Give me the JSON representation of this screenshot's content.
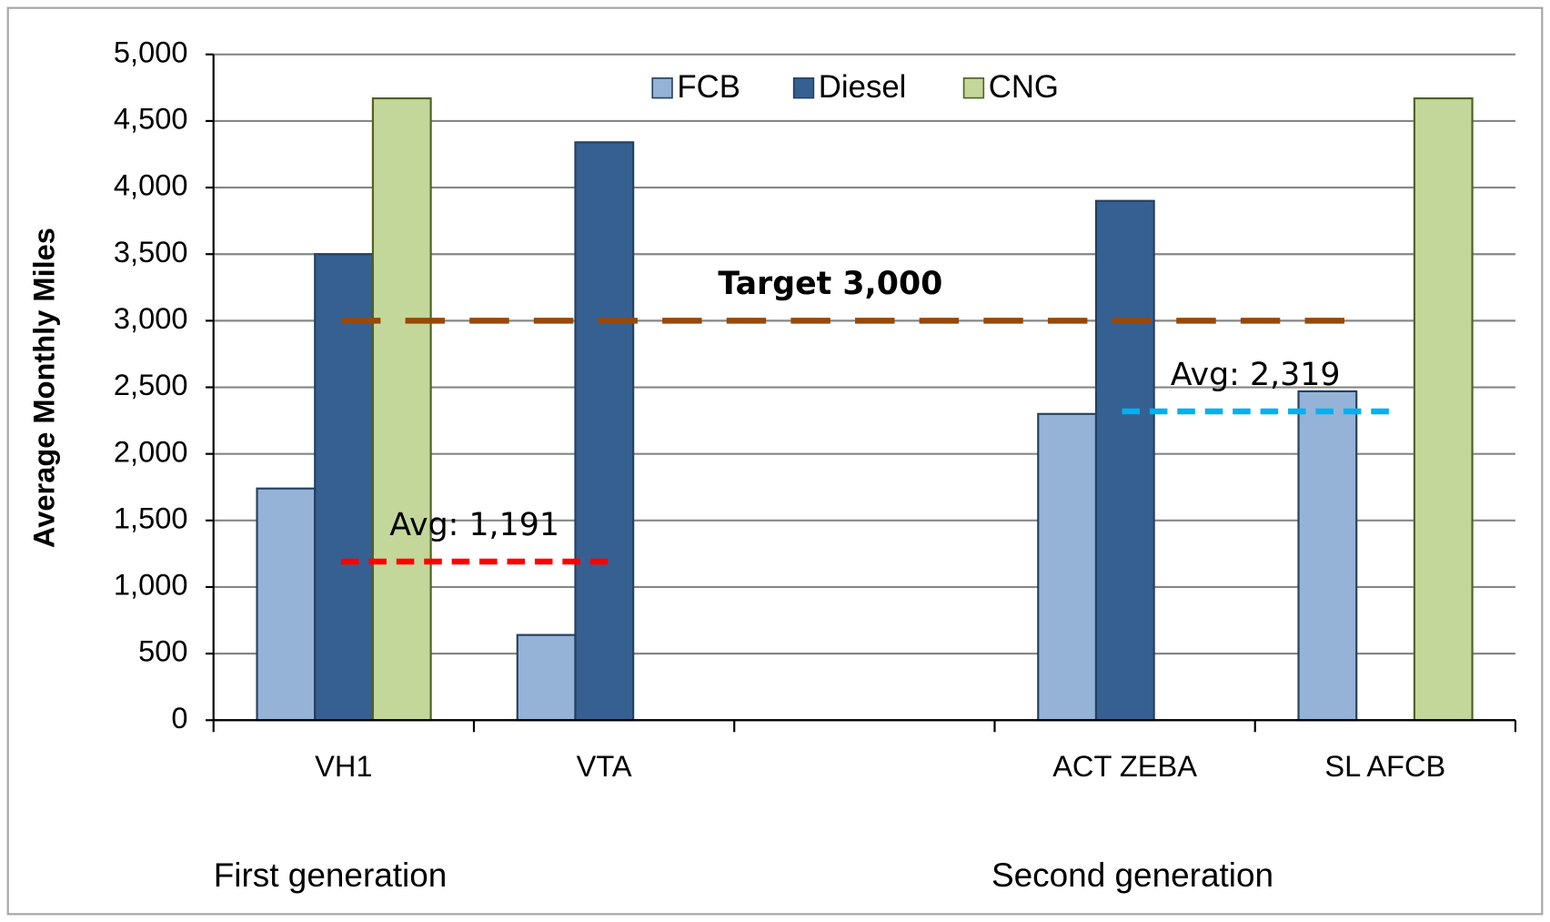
{
  "chart_data": {
    "type": "bar",
    "y_label": "Average Monthly Miles",
    "categories": [
      "VH1",
      "VTA",
      null,
      "ACT ZEBA",
      "SL AFCB"
    ],
    "series": [
      {
        "name": "FCB",
        "color": "#95b3d7",
        "values": [
          1740,
          640,
          null,
          2300,
          2470
        ]
      },
      {
        "name": "Diesel",
        "color": "#366092",
        "values": [
          3500,
          4340,
          null,
          3900,
          null
        ]
      },
      {
        "name": "CNG",
        "color": "#c4d79b",
        "values": [
          4670,
          null,
          null,
          null,
          4670
        ]
      }
    ],
    "ylim": [
      0,
      5000
    ],
    "yticks": [
      0,
      500,
      {
        "value": 1000,
        "label": "1,000"
      },
      {
        "value": 1500,
        "label": "1,500"
      },
      {
        "value": 2000,
        "label": "2,000"
      },
      {
        "value": 2500,
        "label": "2,500"
      },
      {
        "value": 3000,
        "label": "3,000"
      },
      {
        "value": 3500,
        "label": "3,500"
      },
      {
        "value": 4000,
        "label": "4,000"
      },
      {
        "value": 4500,
        "label": "4,500"
      },
      {
        "value": 5000,
        "label": "5,000"
      }
    ],
    "grid": true,
    "legend": "top",
    "reference_lines": [
      {
        "label": "Target 3,000",
        "value": 3000,
        "color": "#984807"
      },
      {
        "label": "Avg: 1,191",
        "value": 1191,
        "color": "#ff0000"
      },
      {
        "label": "Avg: 2,319",
        "value": 2319,
        "color": "#00b0f0"
      }
    ],
    "group_labels": [
      "First generation",
      "Second generation"
    ]
  }
}
